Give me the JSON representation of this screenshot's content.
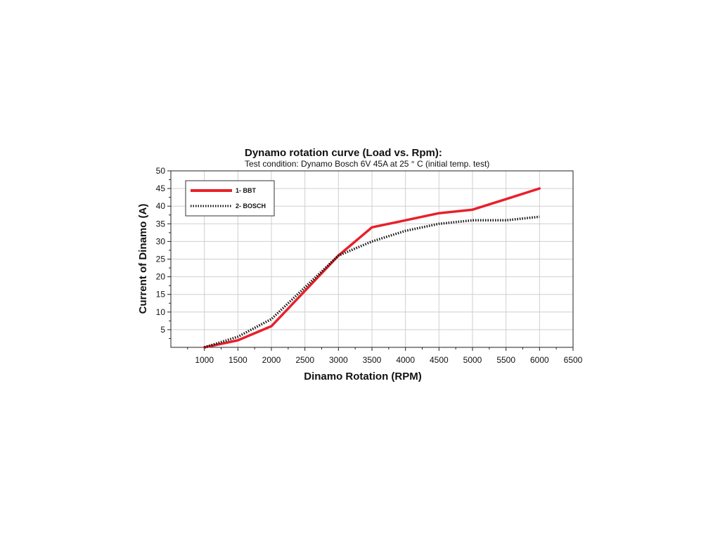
{
  "chart_data": {
    "type": "line",
    "title": "Dynamo rotation curve (Load vs. Rpm):",
    "subtitle": "Test condition: Dynamo Bosch 6V 45A at 25 ° C (initial temp. test)",
    "xlabel": "Dinamo Rotation (RPM)",
    "ylabel": "Current of Dinamo (A)",
    "xlim": [
      500,
      6500
    ],
    "ylim": [
      0,
      50
    ],
    "x_ticks": [
      1000,
      1500,
      2000,
      2500,
      3000,
      3500,
      4000,
      4500,
      5000,
      5500,
      6000,
      6500
    ],
    "y_ticks": [
      5,
      10,
      15,
      20,
      25,
      30,
      35,
      40,
      45,
      50
    ],
    "grid": true,
    "legend_position": "top-left",
    "series": [
      {
        "name": "1- BBT",
        "style": "solid",
        "color": "#e8202a",
        "x": [
          1000,
          1500,
          2000,
          2500,
          3000,
          3500,
          4000,
          4500,
          5000,
          5500,
          6000
        ],
        "y": [
          0,
          2,
          6,
          16,
          26,
          34,
          36,
          38,
          39,
          42,
          45
        ]
      },
      {
        "name": "2- BOSCH",
        "style": "dotted",
        "color": "#111111",
        "x": [
          1000,
          1500,
          2000,
          2500,
          3000,
          3500,
          4000,
          4500,
          5000,
          5500,
          6000
        ],
        "y": [
          0,
          3,
          8,
          17,
          26,
          30,
          33,
          35,
          36,
          36,
          37
        ]
      }
    ]
  }
}
